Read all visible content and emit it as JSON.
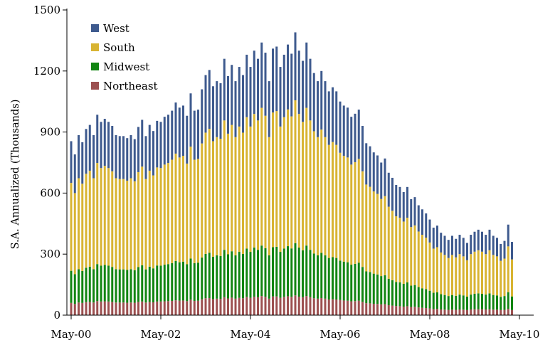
{
  "chart_data": {
    "type": "bar",
    "stacked": true,
    "title": "",
    "xlabel": "",
    "ylabel": "S.A. Annualized (Thousands)",
    "ylim": [
      0,
      1500
    ],
    "yticks": [
      0,
      300,
      600,
      900,
      1200,
      1500
    ],
    "xticks": [
      {
        "label": "May-00",
        "index": 0
      },
      {
        "label": "May-02",
        "index": 24
      },
      {
        "label": "May-04",
        "index": 48
      },
      {
        "label": "May-06",
        "index": 72
      },
      {
        "label": "May-08",
        "index": 96
      },
      {
        "label": "May-10",
        "index": 120
      }
    ],
    "start_month": "May-00",
    "legend": [
      "West",
      "South",
      "Midwest",
      "Northeast"
    ],
    "legend_position": "top-left",
    "colors": {
      "Northeast": "#9c5050",
      "Midwest": "#128512",
      "South": "#d8b432",
      "West": "#3e5a8e"
    },
    "totals": [
      855,
      790,
      885,
      850,
      915,
      935,
      885,
      985,
      950,
      965,
      950,
      930,
      885,
      880,
      880,
      870,
      885,
      865,
      925,
      960,
      880,
      935,
      905,
      955,
      950,
      975,
      985,
      1005,
      1045,
      1020,
      1030,
      980,
      1090,
      1005,
      1010,
      1110,
      1180,
      1205,
      1125,
      1150,
      1140,
      1260,
      1175,
      1230,
      1150,
      1220,
      1180,
      1280,
      1220,
      1300,
      1260,
      1340,
      1290,
      1150,
      1310,
      1320,
      1220,
      1280,
      1330,
      1285,
      1390,
      1300,
      1250,
      1340,
      1260,
      1190,
      1150,
      1200,
      1150,
      1100,
      1120,
      1100,
      1050,
      1030,
      1020,
      975,
      990,
      1010,
      930,
      845,
      830,
      800,
      785,
      750,
      770,
      700,
      675,
      640,
      630,
      605,
      630,
      570,
      580,
      540,
      520,
      500,
      470,
      430,
      440,
      405,
      390,
      370,
      390,
      375,
      395,
      380,
      355,
      395,
      410,
      420,
      410,
      395,
      420,
      390,
      380,
      350,
      365,
      445,
      360
    ],
    "ne_ratio": 0.07,
    "midwest_ratio": 0.185,
    "south_ratio": 0.505,
    "series": [
      {
        "name": "Northeast",
        "values": []
      },
      {
        "name": "Midwest",
        "values": []
      },
      {
        "name": "South",
        "values": []
      },
      {
        "name": "West",
        "values": []
      }
    ]
  }
}
